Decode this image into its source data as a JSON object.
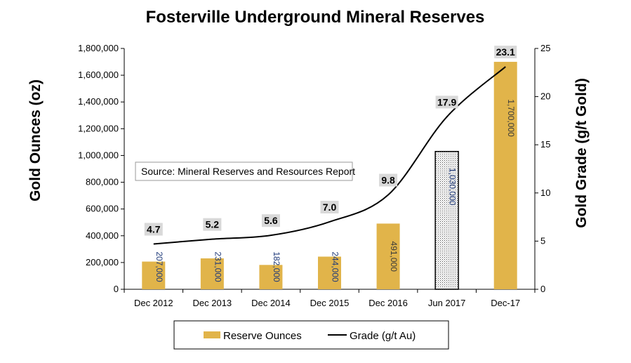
{
  "chart_data": {
    "type": "bar",
    "title": "Fosterville Underground Mineral Reserves",
    "ylabel": "Gold Ounces (oz)",
    "y2label": "Gold Grade (g/t  Gold)",
    "categories": [
      "Dec 2012",
      "Dec 2013",
      "Dec 2014",
      "Dec 2015",
      "Dec 2016",
      "Jun 2017",
      "Dec-17"
    ],
    "ylim": [
      0,
      1800000
    ],
    "y2lim": [
      0,
      25
    ],
    "yticks": [
      "0",
      "200,000",
      "400,000",
      "600,000",
      "800,000",
      "1,000,000",
      "1,200,000",
      "1,400,000",
      "1,600,000",
      "1,800,000"
    ],
    "y2ticks": [
      "0",
      "5",
      "10",
      "15",
      "20",
      "25"
    ],
    "series": [
      {
        "name": "Reserve Ounces",
        "kind": "bar",
        "values": [
          207000,
          231000,
          182000,
          244000,
          491000,
          1030000,
          1700000
        ],
        "labels": [
          "207,000",
          "231,000",
          "182,000",
          "244,000",
          "491,000",
          "1,030,000",
          "1,700,000"
        ],
        "color": "#E1B44A"
      },
      {
        "name": "Grade (g/t Au)",
        "kind": "line",
        "axis": "right",
        "values": [
          4.7,
          5.2,
          5.6,
          7.0,
          9.8,
          17.9,
          23.1
        ],
        "labels": [
          "4.7",
          "5.2",
          "5.6",
          "7.0",
          "9.8",
          "17.9",
          "23.1"
        ],
        "color": "#000000"
      }
    ],
    "annotation": "Source: Mineral Reserves and Resources Report",
    "grid": false,
    "legend": "bottom"
  },
  "colors": {
    "bar": "#E1B44A",
    "line": "#000000",
    "label_blue": "#1F3A7A",
    "label_box": "#D9D9D9"
  }
}
